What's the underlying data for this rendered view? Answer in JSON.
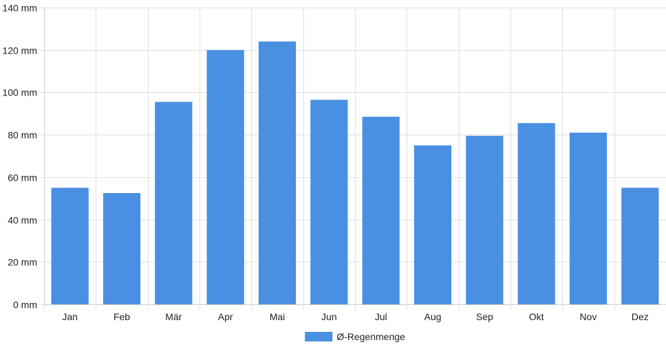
{
  "chart_data": {
    "type": "bar",
    "categories": [
      "Jan",
      "Feb",
      "Mär",
      "Apr",
      "Mai",
      "Jun",
      "Jul",
      "Aug",
      "Sep",
      "Okt",
      "Nov",
      "Dez"
    ],
    "series": [
      {
        "name": "Ø-Regenmenge",
        "color": "#4a90e2",
        "values": [
          55,
          52.5,
          95.5,
          120,
          124,
          96.5,
          88.5,
          75,
          79.5,
          85.5,
          81,
          55
        ]
      }
    ],
    "ylim": [
      0,
      140
    ],
    "yticks": [
      0,
      20,
      40,
      60,
      80,
      100,
      120,
      140
    ],
    "yunit": "mm",
    "grid": true,
    "legend_position": "bottom"
  }
}
